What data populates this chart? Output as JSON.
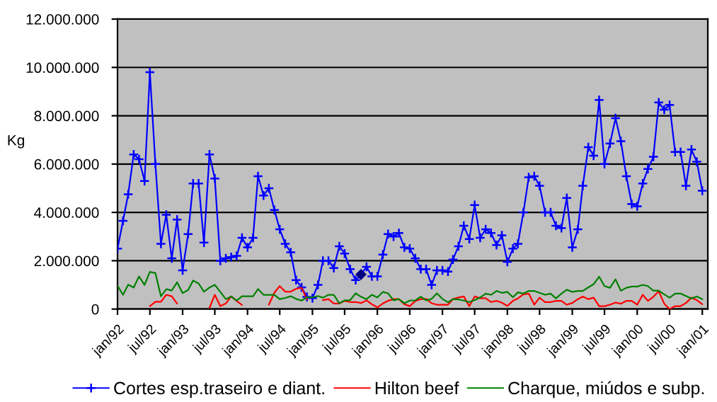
{
  "chart_data": {
    "type": "line",
    "ylabel": "Kg",
    "grid": "y",
    "legend": "bottom",
    "x": [
      "1992-01",
      "1992-02",
      "1992-03",
      "1992-04",
      "1992-05",
      "1992-06",
      "1992-07",
      "1992-08",
      "1992-09",
      "1992-10",
      "1992-11",
      "1992-12",
      "1993-01",
      "1993-02",
      "1993-03",
      "1993-04",
      "1993-05",
      "1993-06",
      "1993-07",
      "1993-08",
      "1993-09",
      "1993-10",
      "1993-11",
      "1993-12",
      "1994-01",
      "1994-02",
      "1994-03",
      "1994-04",
      "1994-05",
      "1994-06",
      "1994-07",
      "1994-08",
      "1994-09",
      "1994-10",
      "1994-11",
      "1994-12",
      "1995-01",
      "1995-02",
      "1995-03",
      "1995-04",
      "1995-05",
      "1995-06",
      "1995-07",
      "1995-08",
      "1995-09",
      "1995-10",
      "1995-11",
      "1995-12",
      "1996-01",
      "1996-02",
      "1996-03",
      "1996-04",
      "1996-05",
      "1996-06",
      "1996-07",
      "1996-08",
      "1996-09",
      "1996-10",
      "1996-11",
      "1996-12",
      "1997-01",
      "1997-02",
      "1997-03",
      "1997-04",
      "1997-05",
      "1997-06",
      "1997-07",
      "1997-08",
      "1997-09",
      "1997-10",
      "1997-11",
      "1997-12",
      "1998-01",
      "1998-02",
      "1998-03",
      "1998-04",
      "1998-05",
      "1998-06",
      "1998-07",
      "1998-08",
      "1998-09",
      "1998-10",
      "1998-11",
      "1998-12",
      "1999-01",
      "1999-02",
      "1999-03",
      "1999-04",
      "1999-05",
      "1999-06",
      "1999-07",
      "1999-08",
      "1999-09",
      "1999-10",
      "1999-11",
      "1999-12",
      "2000-01",
      "2000-02",
      "2000-03",
      "2000-04",
      "2000-05",
      "2000-06",
      "2000-07",
      "2000-08",
      "2000-09",
      "2000-10",
      "2000-11",
      "2000-12",
      "2001-01"
    ],
    "xlim": [
      "1992-01",
      "2001-02"
    ],
    "xticks": [
      {
        "value": "1992-01",
        "label": "jan/92"
      },
      {
        "value": "1992-07",
        "label": "jul/92"
      },
      {
        "value": "1993-01",
        "label": "jan/93"
      },
      {
        "value": "1993-07",
        "label": "jul/93"
      },
      {
        "value": "1994-01",
        "label": "jan/94"
      },
      {
        "value": "1994-07",
        "label": "jul/94"
      },
      {
        "value": "1995-01",
        "label": "jan/95"
      },
      {
        "value": "1995-07",
        "label": "jul/95"
      },
      {
        "value": "1996-01",
        "label": "jan/96"
      },
      {
        "value": "1996-07",
        "label": "jul/96"
      },
      {
        "value": "1997-01",
        "label": "jan/97"
      },
      {
        "value": "1997-07",
        "label": "jul/97"
      },
      {
        "value": "1998-01",
        "label": "jan/98"
      },
      {
        "value": "1998-07",
        "label": "jul/98"
      },
      {
        "value": "1999-01",
        "label": "jan/99"
      },
      {
        "value": "1999-07",
        "label": "jul/99"
      },
      {
        "value": "2000-01",
        "label": "jan/00"
      },
      {
        "value": "2000-07",
        "label": "jul/00"
      },
      {
        "value": "2001-01",
        "label": "jan/01"
      }
    ],
    "ylim": [
      0,
      12000000
    ],
    "yticks": [
      0,
      {
        "value": 2000000,
        "label": "2.000.000"
      },
      {
        "value": 4000000,
        "label": "4.000.000"
      },
      {
        "value": 6000000,
        "label": "6.000.000"
      },
      {
        "value": 8000000,
        "label": "8.000.000"
      },
      {
        "value": 10000000,
        "label": "10.000.000"
      },
      {
        "value": 12000000,
        "label": "12.000.000"
      }
    ],
    "series": [
      {
        "name": "Cortes esp.traseiro e diant.",
        "color": "#0000ff",
        "marker": "cross",
        "values": [
          2500000,
          3650000,
          4750000,
          6400000,
          6200000,
          5300000,
          9800000,
          6000000,
          2700000,
          3900000,
          2100000,
          3700000,
          1600000,
          3100000,
          5200000,
          5200000,
          2750000,
          6400000,
          5400000,
          2000000,
          2100000,
          2150000,
          2200000,
          2950000,
          2550000,
          2950000,
          5500000,
          4700000,
          5000000,
          4100000,
          3300000,
          2700000,
          2350000,
          1200000,
          900000,
          500000,
          450000,
          1000000,
          2000000,
          2000000,
          1700000,
          2600000,
          2300000,
          1650000,
          1200000,
          1430000,
          1750000,
          1350000,
          1350000,
          2250000,
          3100000,
          3000000,
          3150000,
          2550000,
          2500000,
          2100000,
          1650000,
          1650000,
          1000000,
          1600000,
          1600000,
          1550000,
          2050000,
          2600000,
          3450000,
          2900000,
          4300000,
          2950000,
          3300000,
          3150000,
          2650000,
          3050000,
          1950000,
          2500000,
          2700000,
          4000000,
          5450000,
          5500000,
          5100000,
          4000000,
          4000000,
          3450000,
          3350000,
          4600000,
          2550000,
          3300000,
          5100000,
          6700000,
          6350000,
          8650000,
          6000000,
          6850000,
          7900000,
          6950000,
          5500000,
          4350000,
          4250000,
          5200000,
          5800000,
          6300000,
          8550000,
          8250000,
          8450000,
          6500000,
          6500000,
          5100000,
          6600000,
          6100000,
          4900000
        ]
      },
      {
        "name": "Hilton beef",
        "color": "#ff0000",
        "values": [
          null,
          null,
          null,
          null,
          null,
          null,
          120000,
          300000,
          300000,
          590000,
          530000,
          230000,
          null,
          null,
          null,
          null,
          null,
          50000,
          590000,
          120000,
          230000,
          530000,
          330000,
          170000,
          null,
          null,
          null,
          null,
          180000,
          680000,
          950000,
          720000,
          720000,
          840000,
          880000,
          400000,
          null,
          null,
          370000,
          410000,
          230000,
          230000,
          340000,
          290000,
          290000,
          250000,
          360000,
          200000,
          70000,
          230000,
          340000,
          410000,
          410000,
          200000,
          120000,
          330000,
          410000,
          420000,
          240000,
          180000,
          180000,
          180000,
          410000,
          480000,
          520000,
          120000,
          520000,
          450000,
          450000,
          290000,
          340000,
          260000,
          130000,
          340000,
          440000,
          610000,
          640000,
          180000,
          470000,
          290000,
          290000,
          340000,
          340000,
          180000,
          250000,
          410000,
          520000,
          410000,
          470000,
          120000,
          120000,
          180000,
          270000,
          220000,
          340000,
          340000,
          180000,
          590000,
          340000,
          510000,
          740000,
          220000,
          0,
          120000,
          120000,
          250000,
          470000,
          370000,
          200000
        ]
      },
      {
        "name": "Charque, miúdos e subp.",
        "color": "#008000",
        "values": [
          960000,
          590000,
          1010000,
          890000,
          1350000,
          1000000,
          1540000,
          1490000,
          530000,
          820000,
          770000,
          1110000,
          660000,
          790000,
          1180000,
          1060000,
          720000,
          890000,
          1000000,
          710000,
          410000,
          520000,
          350000,
          530000,
          530000,
          530000,
          830000,
          590000,
          590000,
          590000,
          410000,
          460000,
          530000,
          420000,
          350000,
          490000,
          480000,
          540000,
          470000,
          590000,
          590000,
          240000,
          360000,
          370000,
          650000,
          510000,
          410000,
          590000,
          480000,
          710000,
          650000,
          360000,
          410000,
          240000,
          350000,
          360000,
          510000,
          360000,
          420000,
          650000,
          420000,
          280000,
          410000,
          400000,
          350000,
          290000,
          370000,
          480000,
          640000,
          590000,
          750000,
          670000,
          710000,
          490000,
          690000,
          640000,
          750000,
          750000,
          670000,
          590000,
          640000,
          440000,
          640000,
          800000,
          710000,
          750000,
          750000,
          900000,
          1030000,
          1340000,
          950000,
          880000,
          1230000,
          760000,
          880000,
          930000,
          930000,
          1000000,
          950000,
          760000,
          760000,
          610000,
          470000,
          640000,
          640000,
          540000,
          440000,
          520000,
          410000
        ]
      },
      {
        "type": "scatter",
        "color": "#000080",
        "marker": "diamond",
        "x": [
          "1995-10"
        ],
        "values": [
          1430000
        ]
      }
    ]
  }
}
